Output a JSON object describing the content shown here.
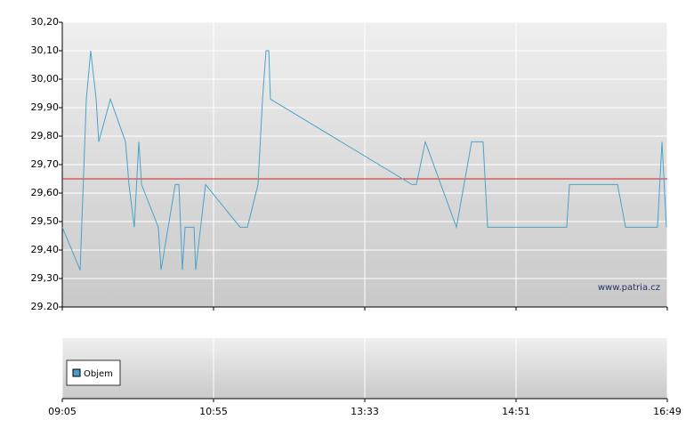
{
  "chart_data": {
    "type": "line",
    "x": [
      0,
      0.118,
      0.159,
      0.188,
      0.224,
      0.241,
      0.318,
      0.418,
      0.441,
      0.476,
      0.506,
      0.524,
      0.635,
      0.653,
      0.747,
      0.771,
      0.794,
      0.812,
      0.871,
      0.882,
      0.947,
      1.176,
      1.224,
      1.294,
      1.324,
      1.347,
      1.365,
      1.376,
      2.312,
      2.341,
      2.4,
      2.606,
      2.706,
      2.782,
      2.812,
      3.335,
      3.353,
      3.671,
      3.724,
      3.935,
      3.965,
      3.994
    ],
    "series": [
      {
        "color": "#4aa3c8",
        "values": [
          29.48,
          29.33,
          29.93,
          30.1,
          29.93,
          29.78,
          29.93,
          29.78,
          29.63,
          29.48,
          29.78,
          29.63,
          29.48,
          29.33,
          29.63,
          29.63,
          29.33,
          29.48,
          29.48,
          29.33,
          29.63,
          29.48,
          29.48,
          29.63,
          29.93,
          30.1,
          30.1,
          29.93,
          29.63,
          29.63,
          29.78,
          29.48,
          29.78,
          29.78,
          29.48,
          29.48,
          29.63,
          29.63,
          29.48,
          29.48,
          29.78,
          29.48
        ]
      }
    ],
    "reference_line": {
      "value": 29.65,
      "color": "#d42020"
    },
    "xlim": [
      0,
      4
    ],
    "xticks": [
      {
        "value": 0,
        "label": "09:05"
      },
      {
        "value": 1,
        "label": "10:55"
      },
      {
        "value": 2,
        "label": "13:33"
      },
      {
        "value": 3,
        "label": "14:51"
      },
      {
        "value": 4,
        "label": "16:49"
      }
    ],
    "ylim": [
      29.2,
      30.2
    ],
    "yticks": [
      {
        "value": 29.2,
        "label": "29.20"
      },
      {
        "value": 29.3,
        "label": "29,30"
      },
      {
        "value": 29.4,
        "label": "29,40"
      },
      {
        "value": 29.5,
        "label": "29,50"
      },
      {
        "value": 29.6,
        "label": "29,60"
      },
      {
        "value": 29.7,
        "label": "29,70"
      },
      {
        "value": 29.8,
        "label": "29,80"
      },
      {
        "value": 29.9,
        "label": "29,90"
      },
      {
        "value": 30.0,
        "label": "30,00"
      },
      {
        "value": 30.1,
        "label": "30,10"
      },
      {
        "value": 30.2,
        "label": "30,20"
      }
    ],
    "grid": true,
    "watermark": "www.patria.cz",
    "volume_legend": {
      "name": "Objem",
      "color": "#4a9cc8"
    }
  }
}
